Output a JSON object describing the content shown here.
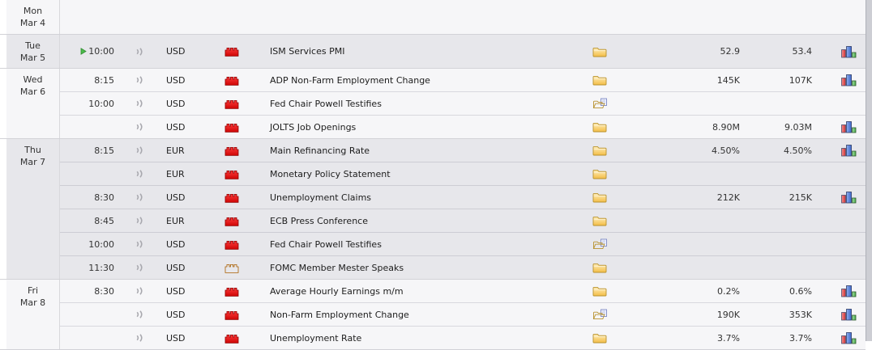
{
  "page": {
    "kind": "economic-calendar-week-view",
    "colors": {
      "row_light": "#f6f6f8",
      "row_dark": "#e7e7eb",
      "impact_high": "#e01010",
      "impact_medium": "#f0a030",
      "folder_yellow": "#f5c64f",
      "graph_bars": [
        "#d03030",
        "#3c66c8",
        "#4aa84a"
      ],
      "play_green": "#4cbb4c",
      "alert_gray": "#a8a8ae"
    },
    "icons": {
      "play": "green-play-triangle (next release marker)",
      "alert": "sound-wave-double-arc",
      "impact_high": "red-impact-block",
      "impact_medium": "orange-impact-block",
      "detail_closed": "yellow-closed-folder",
      "detail_open": "yellow-folder-with-document",
      "graph": "mini-bar-chart"
    }
  },
  "calendar": {
    "days": [
      {
        "day": "Mon",
        "date": "Mar 4",
        "shade": "light",
        "tall": true,
        "events": []
      },
      {
        "day": "Tue",
        "date": "Mar 5",
        "shade": "dark",
        "tall": true,
        "events": [
          {
            "time": "10:00",
            "play": true,
            "alert": true,
            "currency": "USD",
            "impact": "red",
            "name": "ISM Services PMI",
            "detail": "closed",
            "forecast": "52.9",
            "previous": "53.4",
            "graph": true
          }
        ]
      },
      {
        "day": "Wed",
        "date": "Mar 6",
        "shade": "light",
        "tall": false,
        "events": [
          {
            "time": "8:15",
            "play": false,
            "alert": true,
            "currency": "USD",
            "impact": "red",
            "name": "ADP Non-Farm Employment Change",
            "detail": "closed",
            "forecast": "145K",
            "previous": "107K",
            "graph": true
          },
          {
            "time": "10:00",
            "play": false,
            "alert": true,
            "currency": "USD",
            "impact": "red",
            "name": "Fed Chair Powell Testifies",
            "detail": "open",
            "forecast": "",
            "previous": "",
            "graph": false
          },
          {
            "time": "",
            "play": false,
            "alert": true,
            "currency": "USD",
            "impact": "red",
            "name": "JOLTS Job Openings",
            "detail": "closed",
            "forecast": "8.90M",
            "previous": "9.03M",
            "graph": true
          }
        ]
      },
      {
        "day": "Thu",
        "date": "Mar 7",
        "shade": "dark",
        "tall": false,
        "events": [
          {
            "time": "8:15",
            "play": false,
            "alert": true,
            "currency": "EUR",
            "impact": "red",
            "name": "Main Refinancing Rate",
            "detail": "closed",
            "forecast": "4.50%",
            "previous": "4.50%",
            "graph": true
          },
          {
            "time": "",
            "play": false,
            "alert": true,
            "currency": "EUR",
            "impact": "red",
            "name": "Monetary Policy Statement",
            "detail": "closed",
            "forecast": "",
            "previous": "",
            "graph": false
          },
          {
            "time": "8:30",
            "play": false,
            "alert": true,
            "currency": "USD",
            "impact": "red",
            "name": "Unemployment Claims",
            "detail": "closed",
            "forecast": "212K",
            "previous": "215K",
            "graph": true
          },
          {
            "time": "8:45",
            "play": false,
            "alert": true,
            "currency": "EUR",
            "impact": "red",
            "name": "ECB Press Conference",
            "detail": "closed",
            "forecast": "",
            "previous": "",
            "graph": false
          },
          {
            "time": "10:00",
            "play": false,
            "alert": true,
            "currency": "USD",
            "impact": "red",
            "name": "Fed Chair Powell Testifies",
            "detail": "open",
            "forecast": "",
            "previous": "",
            "graph": false
          },
          {
            "time": "11:30",
            "play": false,
            "alert": true,
            "currency": "USD",
            "impact": "orange",
            "name": "FOMC Member Mester Speaks",
            "detail": "closed",
            "forecast": "",
            "previous": "",
            "graph": false
          }
        ]
      },
      {
        "day": "Fri",
        "date": "Mar 8",
        "shade": "light",
        "tall": false,
        "events": [
          {
            "time": "8:30",
            "play": false,
            "alert": true,
            "currency": "USD",
            "impact": "red",
            "name": "Average Hourly Earnings m/m",
            "detail": "closed",
            "forecast": "0.2%",
            "previous": "0.6%",
            "graph": true
          },
          {
            "time": "",
            "play": false,
            "alert": true,
            "currency": "USD",
            "impact": "red",
            "name": "Non-Farm Employment Change",
            "detail": "open",
            "forecast": "190K",
            "previous": "353K",
            "graph": true
          },
          {
            "time": "",
            "play": false,
            "alert": true,
            "currency": "USD",
            "impact": "red",
            "name": "Unemployment Rate",
            "detail": "closed",
            "forecast": "3.7%",
            "previous": "3.7%",
            "graph": true
          }
        ]
      }
    ]
  }
}
